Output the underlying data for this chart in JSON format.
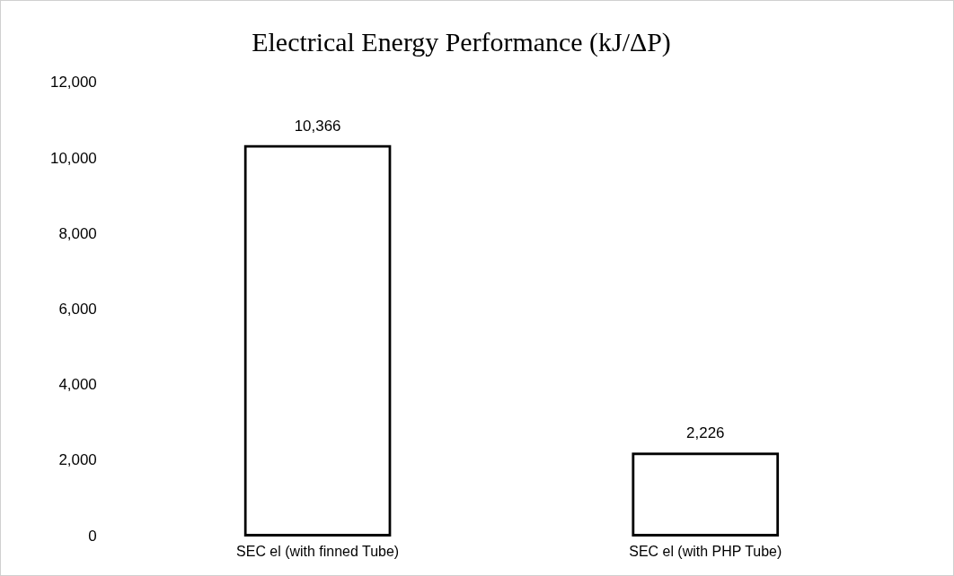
{
  "chart_data": {
    "type": "bar",
    "title": "Electrical Energy Performance (kJ/ΔP)",
    "categories": [
      "SEC el (with finned Tube)",
      "SEC el (with PHP Tube)"
    ],
    "values": [
      10366,
      2226
    ],
    "value_labels": [
      "10,366",
      "2,226"
    ],
    "color": "#000000",
    "ylim": [
      0,
      12000
    ],
    "yticks": [
      {
        "value": 0,
        "label": "0"
      },
      {
        "value": 2000,
        "label": "2,000"
      },
      {
        "value": 4000,
        "label": "4,000"
      },
      {
        "value": 6000,
        "label": "6,000"
      },
      {
        "value": 8000,
        "label": "8,000"
      },
      {
        "value": 10000,
        "label": "10,000"
      },
      {
        "value": 12000,
        "label": "12,000"
      }
    ],
    "grid": false,
    "legend": false
  }
}
